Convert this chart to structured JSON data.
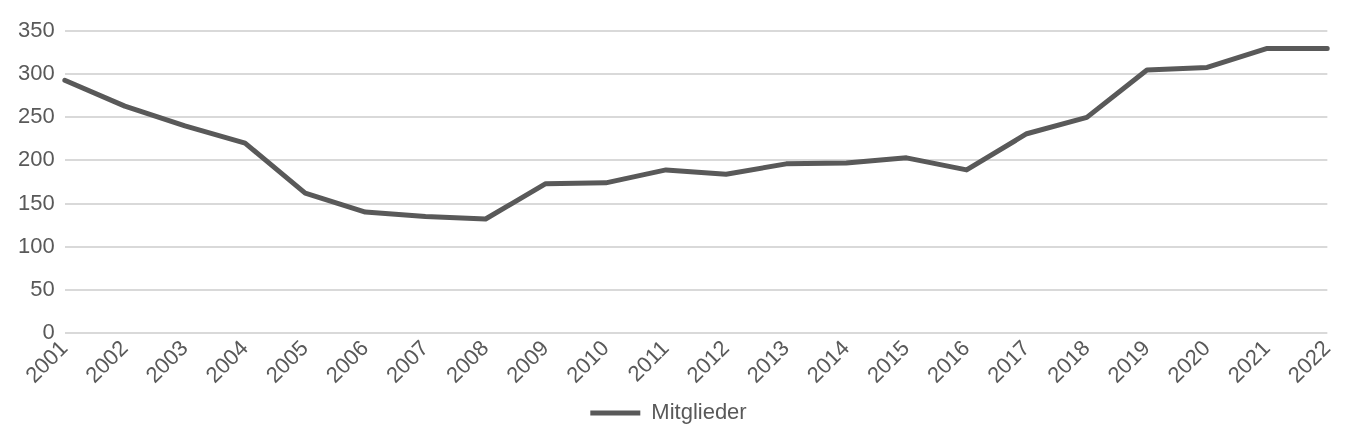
{
  "chart_data": {
    "type": "line",
    "categories": [
      "2001",
      "2002",
      "2003",
      "2004",
      "2005",
      "2006",
      "2007",
      "2008",
      "2009",
      "2010",
      "2011",
      "2012",
      "2013",
      "2014",
      "2015",
      "2016",
      "2017",
      "2018",
      "2019",
      "2020",
      "2021",
      "2022"
    ],
    "series": [
      {
        "name": "Mitglieder",
        "color": "#595959",
        "values": [
          293,
          263,
          240,
          220,
          162,
          140,
          135,
          132,
          173,
          174,
          189,
          184,
          196,
          197,
          203,
          189,
          231,
          250,
          305,
          308,
          330,
          330
        ]
      }
    ],
    "ylim": [
      0,
      350
    ],
    "yticks": [
      0,
      50,
      100,
      150,
      200,
      250,
      300,
      350
    ],
    "grid": "y",
    "legend": "bottom",
    "marker": "none",
    "line_style": "solid"
  }
}
